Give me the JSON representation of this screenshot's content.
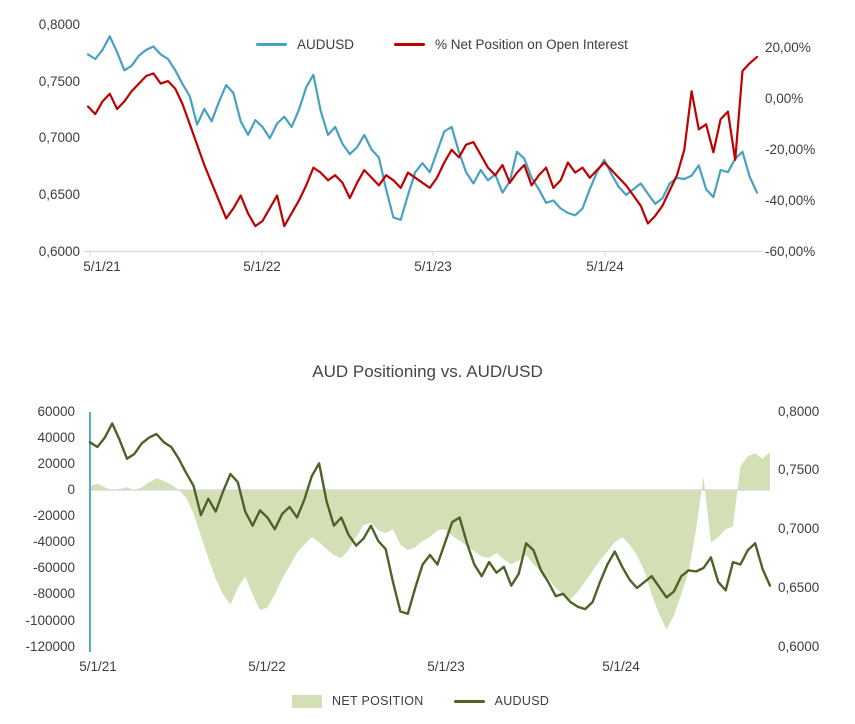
{
  "colors": {
    "axis_line": "#D9D9D9",
    "tick_text": "#3d3d3d",
    "audusd_blue": "#46A2C0",
    "net_red": "#C00000",
    "net_fill_green": "#D3E0B5",
    "audusd_olive": "#4F6228",
    "vertical_marker": "#46A2C0"
  },
  "chart_data": [
    {
      "type": "line",
      "title": "",
      "legend_position": "top",
      "x_ticks": [
        "5/1/21",
        "5/1/22",
        "5/1/23",
        "5/1/24"
      ],
      "left_axis": {
        "min": 0.6,
        "max": 0.8,
        "ticks": [
          "0,8000",
          "0,7500",
          "0,7000",
          "0,6500",
          "0,6000"
        ]
      },
      "right_axis": {
        "min": -60,
        "max": 20,
        "ticks": [
          "20,00%",
          "0,00%",
          "-20,00%",
          "-40,00%",
          "-60,00%"
        ]
      },
      "series": [
        {
          "name": "AUDUSD",
          "type": "line",
          "axis": "left",
          "color": "#46A2C0",
          "values": [
            0.774,
            0.77,
            0.778,
            0.79,
            0.776,
            0.76,
            0.764,
            0.773,
            0.778,
            0.781,
            0.774,
            0.77,
            0.76,
            0.748,
            0.737,
            0.712,
            0.726,
            0.715,
            0.732,
            0.747,
            0.74,
            0.715,
            0.703,
            0.716,
            0.71,
            0.7,
            0.713,
            0.719,
            0.71,
            0.725,
            0.745,
            0.756,
            0.724,
            0.703,
            0.71,
            0.695,
            0.686,
            0.692,
            0.703,
            0.69,
            0.683,
            0.655,
            0.63,
            0.628,
            0.65,
            0.67,
            0.678,
            0.67,
            0.688,
            0.706,
            0.71,
            0.688,
            0.67,
            0.66,
            0.672,
            0.663,
            0.668,
            0.652,
            0.662,
            0.688,
            0.682,
            0.665,
            0.655,
            0.643,
            0.645,
            0.638,
            0.634,
            0.632,
            0.638,
            0.655,
            0.67,
            0.681,
            0.668,
            0.657,
            0.65,
            0.655,
            0.66,
            0.651,
            0.642,
            0.647,
            0.66,
            0.665,
            0.664,
            0.667,
            0.676,
            0.655,
            0.648,
            0.672,
            0.67,
            0.682,
            0.688,
            0.666,
            0.652
          ]
        },
        {
          "name": "% Net Position on Open Interest",
          "type": "line",
          "axis": "right",
          "color": "#C00000",
          "values": [
            -3,
            -6,
            -1,
            2,
            -4,
            -1,
            3,
            6,
            9,
            10,
            6,
            7,
            4,
            -2,
            -10,
            -18,
            -26,
            -33,
            -40,
            -47,
            -43,
            -38,
            -45,
            -50,
            -48,
            -43,
            -38,
            -50,
            -45,
            -40,
            -34,
            -27,
            -29,
            -32,
            -30,
            -33,
            -39,
            -33,
            -28,
            -31,
            -34,
            -30,
            -32,
            -35,
            -29,
            -31,
            -33,
            -35,
            -31,
            -25,
            -20,
            -23,
            -18,
            -17,
            -22,
            -27,
            -30,
            -26,
            -33,
            -29,
            -26,
            -34,
            -30,
            -27,
            -35,
            -32,
            -25,
            -29,
            -27,
            -31,
            -28,
            -25,
            -28,
            -31,
            -34,
            -38,
            -42,
            -49,
            -46,
            -42,
            -36,
            -30,
            -20,
            3,
            -12,
            -10,
            -21,
            -8,
            -5,
            -24,
            11,
            14,
            16.5
          ]
        }
      ]
    },
    {
      "type": "area+line",
      "title": "AUD Positioning vs. AUD/USD",
      "legend_position": "bottom",
      "x_ticks": [
        "5/1/21",
        "5/1/22",
        "5/1/23",
        "5/1/24"
      ],
      "left_axis": {
        "min": -120000,
        "max": 60000,
        "ticks": [
          "60000",
          "40000",
          "20000",
          "0",
          "-20000",
          "-40000",
          "-60000",
          "-80000",
          "-100000",
          "-120000"
        ]
      },
      "right_axis": {
        "min": 0.6,
        "max": 0.8,
        "ticks": [
          "0,8000",
          "0,7500",
          "0,7000",
          "0,6500",
          "0,6000"
        ]
      },
      "series": [
        {
          "name": "NET POSITION",
          "type": "area",
          "axis": "left",
          "color": "#D3E0B5",
          "values": [
            3000,
            5000,
            2000,
            0,
            1000,
            2000,
            0,
            2000,
            6000,
            9000,
            7000,
            4000,
            0,
            -6000,
            -18000,
            -35000,
            -52000,
            -68000,
            -80000,
            -88000,
            -75000,
            -66000,
            -80000,
            -92000,
            -90000,
            -80000,
            -68000,
            -58000,
            -48000,
            -42000,
            -36000,
            -40000,
            -45000,
            -50000,
            -52000,
            -46000,
            -36000,
            -27000,
            -25000,
            -31000,
            -33000,
            -30000,
            -42000,
            -46000,
            -44000,
            -39000,
            -36000,
            -31000,
            -30000,
            -35000,
            -39000,
            -43000,
            -47000,
            -51000,
            -52000,
            -48000,
            -53000,
            -57000,
            -54000,
            -50000,
            -57000,
            -62000,
            -68000,
            -75000,
            -80000,
            -84000,
            -78000,
            -70000,
            -62000,
            -54000,
            -47000,
            -40000,
            -36000,
            -42000,
            -50000,
            -62000,
            -80000,
            -95000,
            -107000,
            -96000,
            -80000,
            -62000,
            -30000,
            10000,
            -40000,
            -36000,
            -30000,
            -28000,
            18000,
            26000,
            28000,
            24000,
            29000
          ]
        },
        {
          "name": "AUDUSD",
          "type": "line",
          "axis": "right",
          "color": "#4F6228",
          "values": [
            0.774,
            0.77,
            0.778,
            0.79,
            0.776,
            0.76,
            0.764,
            0.773,
            0.778,
            0.781,
            0.774,
            0.77,
            0.76,
            0.748,
            0.737,
            0.712,
            0.726,
            0.715,
            0.732,
            0.747,
            0.74,
            0.715,
            0.703,
            0.716,
            0.71,
            0.7,
            0.713,
            0.719,
            0.71,
            0.725,
            0.745,
            0.756,
            0.724,
            0.703,
            0.71,
            0.695,
            0.686,
            0.692,
            0.703,
            0.69,
            0.683,
            0.655,
            0.63,
            0.628,
            0.65,
            0.67,
            0.678,
            0.67,
            0.688,
            0.706,
            0.71,
            0.688,
            0.67,
            0.66,
            0.672,
            0.663,
            0.668,
            0.652,
            0.662,
            0.688,
            0.682,
            0.665,
            0.655,
            0.643,
            0.645,
            0.638,
            0.634,
            0.632,
            0.638,
            0.655,
            0.67,
            0.681,
            0.668,
            0.657,
            0.65,
            0.655,
            0.66,
            0.651,
            0.642,
            0.647,
            0.66,
            0.665,
            0.664,
            0.667,
            0.676,
            0.655,
            0.648,
            0.672,
            0.67,
            0.682,
            0.688,
            0.666,
            0.652
          ]
        }
      ]
    }
  ]
}
